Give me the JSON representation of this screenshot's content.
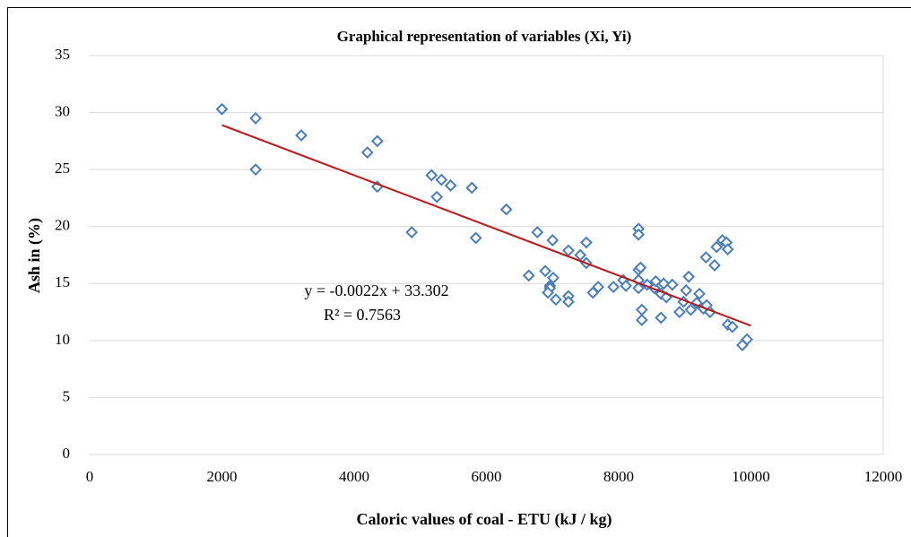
{
  "chart_data": {
    "type": "scatter",
    "title": "Graphical representation of variables (Xi, Yi)",
    "x_label": "Caloric values of coal - ETU (kJ / kg)",
    "y_label": "Ash in (%)",
    "color": "#4a7ebb",
    "x": [
      2000,
      2510,
      2510,
      3200,
      4200,
      4350,
      4350,
      4870,
      5170,
      5320,
      5250,
      5460,
      5780,
      5840,
      6300,
      6770,
      6640,
      7000,
      6890,
      6960,
      7010,
      6960,
      7050,
      6930,
      7240,
      7240,
      7240,
      7420,
      7510,
      7510,
      7610,
      7690,
      7920,
      8070,
      8110,
      8300,
      8300,
      8300,
      8330,
      8300,
      8300,
      8350,
      8350,
      8430,
      8540,
      8560,
      8640,
      8640,
      8680,
      8720,
      8810,
      8920,
      8980,
      9020,
      9060,
      9090,
      9180,
      9220,
      9280,
      9330,
      9320,
      9380,
      9450,
      9480,
      9570,
      9630,
      9650,
      9650,
      9720,
      9870,
      9940
    ],
    "values": [
      30.3,
      29.5,
      25.0,
      28.0,
      26.5,
      27.5,
      23.5,
      19.5,
      24.5,
      24.1,
      22.6,
      23.6,
      23.4,
      19.0,
      21.5,
      19.5,
      15.7,
      18.8,
      16.1,
      14.8,
      15.5,
      14.6,
      13.6,
      14.2,
      13.9,
      13.4,
      17.9,
      17.5,
      18.6,
      16.8,
      14.2,
      14.7,
      14.7,
      15.3,
      14.8,
      19.8,
      19.3,
      16.2,
      16.4,
      15.3,
      14.6,
      12.7,
      11.8,
      14.9,
      14.6,
      15.2,
      14.1,
      12.0,
      15.0,
      13.8,
      14.9,
      12.5,
      13.4,
      14.4,
      15.6,
      12.7,
      13.3,
      14.1,
      12.8,
      13.1,
      17.3,
      12.5,
      16.6,
      18.2,
      18.8,
      18.6,
      18.0,
      11.4,
      11.2,
      9.6,
      10.1
    ],
    "trendline": {
      "slope": -0.0022,
      "intercept": 33.302,
      "xrange": [
        2000,
        10000
      ],
      "color": "#c0171c"
    },
    "annotations": [
      "y = -0.0022x + 33.302",
      "R² = 0.7563"
    ],
    "xlim": [
      0,
      12000
    ],
    "xticks": [
      0,
      2000,
      4000,
      6000,
      8000,
      10000,
      12000
    ],
    "ylim": [
      0,
      35
    ],
    "yticks": [
      0,
      5,
      10,
      15,
      20,
      25,
      30,
      35
    ],
    "grid": true
  }
}
